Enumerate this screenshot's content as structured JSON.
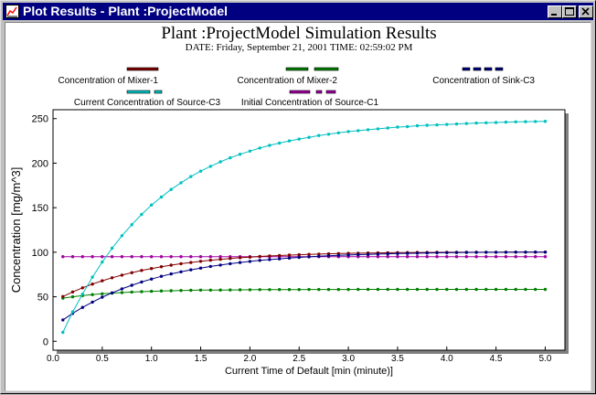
{
  "window": {
    "title": "Plot Results - Plant :ProjectModel",
    "icon": "chart-app-icon",
    "controls": [
      "minimize-icon",
      "maximize-icon",
      "close-icon"
    ]
  },
  "plot": {
    "title": "Plant :ProjectModel Simulation Results",
    "subtitle": "DATE: Friday, September 21, 2001  TIME: 02:59:02 PM"
  },
  "chart_data": {
    "type": "line",
    "xlabel": "Current Time of Default [min (minute)]",
    "ylabel": "Concentration [mg/m^3]",
    "xlim": [
      0,
      5.2
    ],
    "ylim": [
      -10,
      260
    ],
    "xticks": [
      0,
      0.5,
      1.0,
      1.5,
      2.0,
      2.5,
      3.0,
      3.5,
      4.0,
      4.5,
      5.0
    ],
    "xtick_labels": [
      "0.0",
      "0.5",
      "1.0",
      "1.5",
      "2.0",
      "2.5",
      "3.0",
      "3.5",
      "4.0",
      "4.5",
      "5.0"
    ],
    "yticks": [
      0,
      50,
      100,
      150,
      200,
      250
    ],
    "ytick_labels": [
      "0",
      "50",
      "100",
      "150",
      "200",
      "250"
    ],
    "grid": false,
    "legend_position": "top",
    "x": [
      0.1,
      0.2,
      0.3,
      0.4,
      0.5,
      0.6,
      0.7,
      0.8,
      0.9,
      1.0,
      1.1,
      1.2,
      1.3,
      1.4,
      1.5,
      1.6,
      1.7,
      1.8,
      1.9,
      2.0,
      2.1,
      2.2,
      2.3,
      2.4,
      2.5,
      2.6,
      2.7,
      2.8,
      2.9,
      3.0,
      3.1,
      3.2,
      3.3,
      3.4,
      3.5,
      3.6,
      3.7,
      3.8,
      3.9,
      4.0,
      4.1,
      4.2,
      4.3,
      4.4,
      4.5,
      4.6,
      4.7,
      4.8,
      4.9,
      5.0
    ],
    "series": [
      {
        "name": "Concentration of Mixer-1",
        "color": "#800000",
        "dash": "solid",
        "values": [
          50.3,
          55.4,
          60.0,
          64.2,
          67.9,
          71.3,
          74.3,
          77.1,
          79.5,
          81.7,
          83.7,
          85.5,
          87.1,
          88.5,
          89.8,
          91.0,
          92.0,
          93.0,
          93.8,
          94.5,
          95.2,
          95.8,
          96.3,
          96.8,
          97.2,
          97.6,
          97.9,
          98.2,
          98.5,
          98.7,
          98.9,
          99.1,
          99.2,
          99.4,
          99.5,
          99.6,
          99.7,
          99.7,
          99.8,
          99.9,
          99.9,
          99.9,
          100.0,
          100.0,
          100.0,
          100.1,
          100.1,
          100.1,
          100.1,
          100.1
        ]
      },
      {
        "name": "Concentration of Mixer-2",
        "color": "#008000",
        "dash": "long",
        "values": [
          48.4,
          50.0,
          51.3,
          52.4,
          53.3,
          54.1,
          54.7,
          55.3,
          55.7,
          56.1,
          56.5,
          56.7,
          57.0,
          57.2,
          57.4,
          57.5,
          57.6,
          57.7,
          57.8,
          57.9,
          58.0,
          58.0,
          58.1,
          58.1,
          58.1,
          58.2,
          58.2,
          58.2,
          58.2,
          58.2,
          58.3,
          58.3,
          58.3,
          58.3,
          58.3,
          58.3,
          58.3,
          58.3,
          58.3,
          58.3,
          58.3,
          58.3,
          58.3,
          58.3,
          58.3,
          58.3,
          58.3,
          58.3,
          58.3,
          58.3
        ]
      },
      {
        "name": "Concentration of Sink-C3",
        "color": "#000080",
        "dash": "short",
        "values": [
          24.0,
          31.4,
          38.0,
          44.0,
          49.5,
          54.4,
          58.9,
          62.9,
          66.6,
          69.9,
          72.9,
          75.6,
          78.0,
          80.2,
          82.2,
          84.0,
          85.6,
          87.1,
          88.5,
          89.7,
          90.8,
          91.7,
          92.6,
          93.4,
          94.2,
          94.8,
          95.4,
          96.0,
          96.5,
          96.9,
          97.3,
          97.6,
          97.9,
          98.2,
          98.5,
          98.7,
          98.9,
          99.1,
          99.3,
          99.4,
          99.6,
          99.7,
          99.8,
          99.9,
          99.9,
          100.0,
          100.1,
          100.1,
          100.2,
          100.2
        ]
      },
      {
        "name": "Current Concentration of Source-C3",
        "color": "#00c0c0",
        "dash": "mixed",
        "values": [
          10.0,
          33.0,
          53.0,
          72.0,
          89.0,
          104.5,
          118.5,
          131.0,
          142.5,
          153.0,
          162.0,
          170.5,
          178.0,
          185.0,
          191.0,
          196.5,
          201.5,
          206.0,
          210.0,
          213.5,
          217.0,
          220.0,
          222.5,
          225.0,
          227.0,
          229.0,
          231.0,
          232.5,
          234.0,
          235.5,
          236.5,
          237.5,
          238.5,
          239.5,
          240.5,
          241.0,
          242.0,
          242.5,
          243.0,
          243.5,
          244.0,
          244.5,
          245.0,
          245.3,
          245.6,
          246.0,
          246.3,
          246.6,
          246.8,
          247.0
        ]
      },
      {
        "name": "Initial Concentration of Source-C1",
        "color": "#a000a0",
        "dash": "dashdot",
        "values": [
          95,
          95,
          95,
          95,
          95,
          95,
          95,
          95,
          95,
          95,
          95,
          95,
          95,
          95,
          95,
          95,
          95,
          95,
          95,
          95,
          95,
          95,
          95,
          95,
          95,
          95,
          95,
          95,
          95,
          95,
          95,
          95,
          95,
          95,
          95,
          95,
          95,
          95,
          95,
          95,
          95,
          95,
          95,
          95,
          95,
          95,
          95,
          95,
          95,
          95
        ]
      }
    ]
  }
}
